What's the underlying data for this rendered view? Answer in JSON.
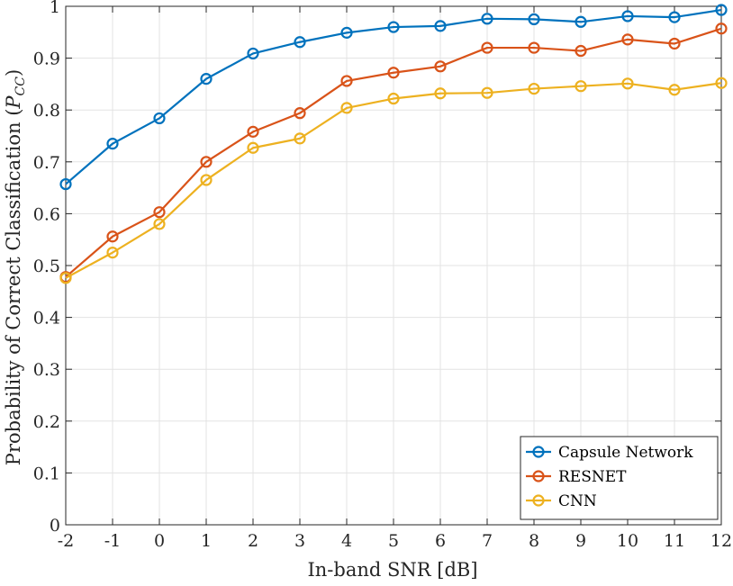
{
  "chart_data": {
    "type": "line",
    "title": "",
    "xlabel": "In-band SNR [dB]",
    "ylabel_text": "Probability of Correct Classification (",
    "ylabel_symbol": "P",
    "ylabel_subscript": "CC",
    "ylabel_close": ")",
    "x": [
      -2,
      -1,
      0,
      1,
      2,
      3,
      4,
      5,
      6,
      7,
      8,
      9,
      10,
      11,
      12
    ],
    "x_tick_labels": [
      "-2",
      "-1",
      "0",
      "1",
      "2",
      "3",
      "4",
      "5",
      "6",
      "7",
      "8",
      "9",
      "10",
      "11",
      "12"
    ],
    "y_ticks": [
      0,
      0.1,
      0.2,
      0.3,
      0.4,
      0.5,
      0.6,
      0.7,
      0.8,
      0.9,
      1
    ],
    "y_tick_labels": [
      "0",
      "0.1",
      "0.2",
      "0.3",
      "0.4",
      "0.5",
      "0.6",
      "0.7",
      "0.8",
      "0.9",
      "1"
    ],
    "xlim": [
      -2,
      12
    ],
    "ylim": [
      0,
      1
    ],
    "grid": true,
    "legend_position": "bottom-right",
    "series": [
      {
        "name": "Capsule Network",
        "color": "#0072BD",
        "marker": "circle",
        "values": [
          0.657,
          0.735,
          0.784,
          0.86,
          0.909,
          0.931,
          0.949,
          0.96,
          0.962,
          0.976,
          0.975,
          0.97,
          0.981,
          0.979,
          0.993
        ]
      },
      {
        "name": "RESNET",
        "color": "#D95319",
        "marker": "circle",
        "values": [
          0.478,
          0.556,
          0.603,
          0.7,
          0.758,
          0.794,
          0.856,
          0.872,
          0.884,
          0.92,
          0.92,
          0.914,
          0.936,
          0.928,
          0.957
        ]
      },
      {
        "name": "CNN",
        "color": "#EDB120",
        "marker": "circle",
        "values": [
          0.476,
          0.525,
          0.58,
          0.665,
          0.727,
          0.745,
          0.804,
          0.822,
          0.832,
          0.833,
          0.841,
          0.846,
          0.851,
          0.839,
          0.852
        ]
      }
    ]
  }
}
